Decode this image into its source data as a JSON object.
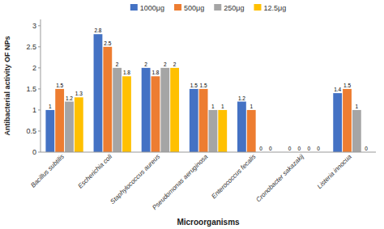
{
  "chart_data": {
    "type": "bar",
    "xlabel": "Microorganisms",
    "ylabel": "Antibacterial activity OF NPs",
    "categories": [
      "Bacillus subtilis",
      "Escherichia coli",
      "Staphylococcus aureus",
      "Pseudomonas aeruginosa",
      "Enterococcus fecalis",
      "Cronobacter sakazakij",
      "Listeria innocua"
    ],
    "series": [
      {
        "name": "1000μg",
        "color": "#4472C4",
        "values": [
          1.0,
          2.8,
          2.0,
          1.5,
          1.2,
          0,
          1.4
        ]
      },
      {
        "name": "500μg",
        "color": "#ED7D31",
        "values": [
          1.5,
          2.5,
          1.8,
          1.5,
          1.0,
          0,
          1.5
        ]
      },
      {
        "name": "250μg",
        "color": "#A5A5A5",
        "values": [
          1.2,
          2.0,
          2.0,
          1.0,
          0,
          0,
          1.0
        ]
      },
      {
        "name": "12.5μg",
        "color": "#FFC000",
        "values": [
          1.3,
          1.8,
          2.0,
          1.0,
          0,
          0,
          0
        ]
      }
    ],
    "ylim": [
      0,
      3.15
    ],
    "yticks": [
      0,
      0.5,
      1,
      1.5,
      2,
      2.5,
      3
    ],
    "grid": false,
    "legend": "top",
    "data_labels": true
  }
}
